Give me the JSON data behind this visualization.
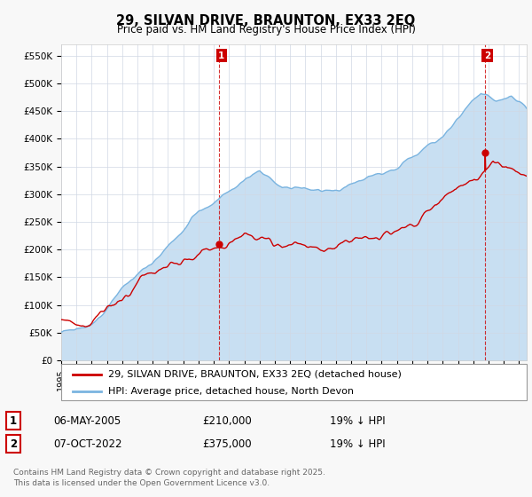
{
  "title": "29, SILVAN DRIVE, BRAUNTON, EX33 2EQ",
  "subtitle": "Price paid vs. HM Land Registry's House Price Index (HPI)",
  "ylim": [
    0,
    570000
  ],
  "xlim_start": 1995.0,
  "xlim_end": 2025.5,
  "hpi_color": "#7ab4e0",
  "hpi_fill_color": "#c8dff2",
  "price_color": "#cc0000",
  "vline_color": "#cc0000",
  "legend_label1": "29, SILVAN DRIVE, BRAUNTON, EX33 2EQ (detached house)",
  "legend_label2": "HPI: Average price, detached house, North Devon",
  "annotation1_date_str": "06-MAY-2005",
  "annotation1_price_str": "£210,000",
  "annotation1_pct": "19% ↓ HPI",
  "annotation2_date_str": "07-OCT-2022",
  "annotation2_price_str": "£375,000",
  "annotation2_pct": "19% ↓ HPI",
  "footer": "Contains HM Land Registry data © Crown copyright and database right 2025.\nThis data is licensed under the Open Government Licence v3.0.",
  "background_color": "#f8f8f8",
  "plot_bg_color": "#ffffff",
  "marker1_date": 2005.35,
  "marker1_price": 210000,
  "marker2_date": 2022.77,
  "marker2_price": 375000
}
